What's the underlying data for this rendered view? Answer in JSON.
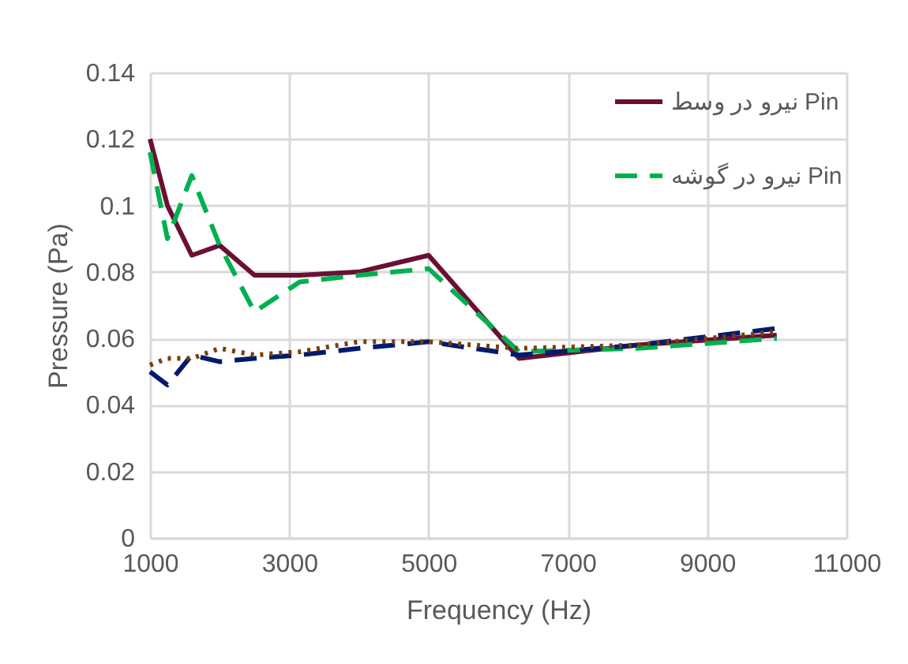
{
  "chart_data": {
    "type": "line",
    "xlabel": "Frequency (Hz)",
    "ylabel": "Pressure (Pa)",
    "x": [
      1000,
      1250,
      1600,
      2000,
      2500,
      3150,
      4000,
      5000,
      6300,
      8000,
      10000
    ],
    "series": [
      {
        "name": "نیرو در وسط Pin",
        "color": "#6b0f35",
        "line_style": "solid",
        "values": [
          0.12,
          0.1,
          0.085,
          0.088,
          0.079,
          0.079,
          0.08,
          0.085,
          0.054,
          0.058,
          0.061
        ]
      },
      {
        "name": "نیرو در گوشه Pin",
        "color": "#00b050",
        "line_style": "dashed",
        "values": [
          0.116,
          0.09,
          0.109,
          0.088,
          0.068,
          0.077,
          0.079,
          0.081,
          0.056,
          0.057,
          0.06
        ]
      },
      {
        "color": "#001a6e",
        "line_style": "dashed",
        "values": [
          0.05,
          0.046,
          0.055,
          0.053,
          0.054,
          0.055,
          0.057,
          0.059,
          0.055,
          0.058,
          0.063
        ]
      },
      {
        "color": "#7a3e0a",
        "line_style": "dotted",
        "values": [
          0.052,
          0.054,
          0.054,
          0.057,
          0.055,
          0.056,
          0.059,
          0.059,
          0.057,
          0.058,
          0.062
        ]
      }
    ],
    "xlim": [
      1000,
      11000
    ],
    "xticks": [
      1000,
      3000,
      5000,
      7000,
      9000,
      11000
    ],
    "ylim": [
      0,
      0.14
    ],
    "yticks": [
      0,
      0.02,
      0.04,
      0.06,
      0.08,
      0.1,
      0.12,
      0.14
    ],
    "grid": true,
    "legend": "top right",
    "marker": "none"
  }
}
